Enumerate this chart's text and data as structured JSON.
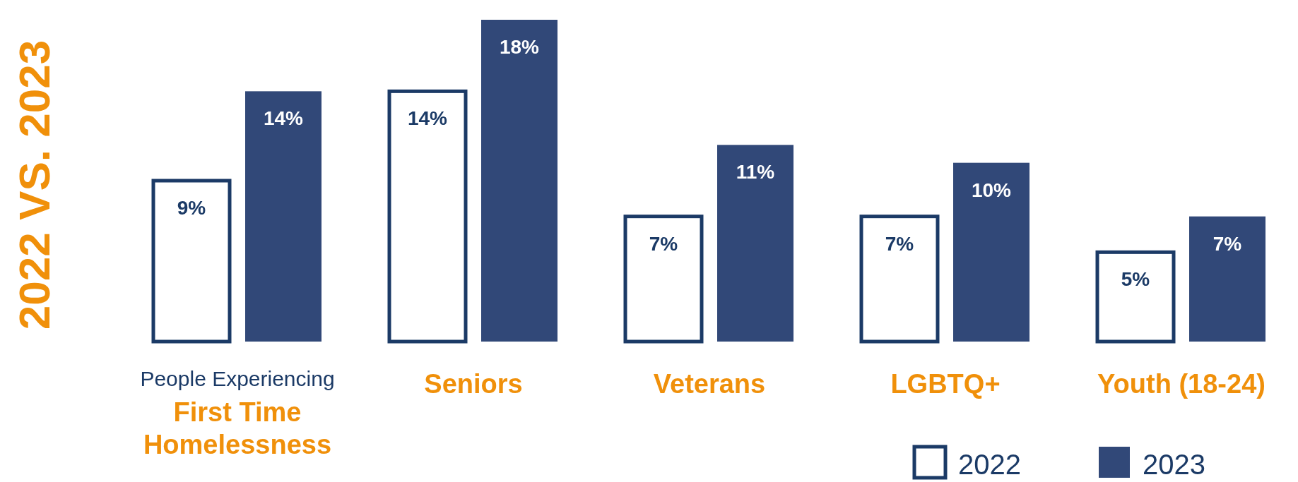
{
  "chart_data": {
    "type": "bar",
    "title": "2022 VS. 2023",
    "categories": [
      "People Experiencing\nFirst Time Homelessness",
      "Seniors",
      "Veterans",
      "LGBTQ+",
      "Youth (18-24)"
    ],
    "series": [
      {
        "name": "2022",
        "color": "#ffffff",
        "values": [
          9,
          14,
          7,
          7,
          5
        ],
        "value_labels": [
          "9%",
          "14%",
          "7%",
          "7%",
          "5%"
        ]
      },
      {
        "name": "2023",
        "color": "#314878",
        "values": [
          14,
          18,
          11,
          10,
          7
        ],
        "value_labels": [
          "14%",
          "18%",
          "11%",
          "10%",
          "7%"
        ]
      }
    ],
    "legend": "bottom right"
  }
}
